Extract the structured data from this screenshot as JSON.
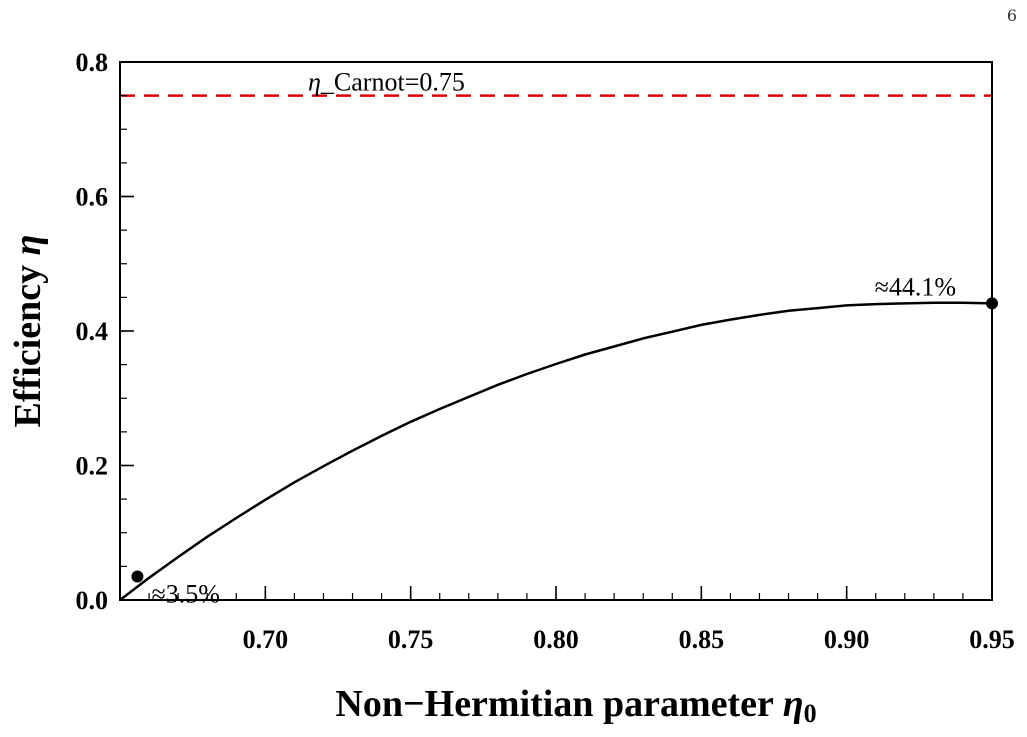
{
  "page": {
    "number": "6"
  },
  "chart_data": {
    "type": "line",
    "title": "",
    "xlabel": "Non−Hermitian parameter η₀",
    "xlabel_main": "Non−Hermitian parameter ",
    "xlabel_symbol": "η",
    "xlabel_subscript": "0",
    "ylabel": "Efficiency η",
    "ylabel_main": "Efficiency ",
    "ylabel_symbol": "η",
    "xlim": [
      0.65,
      0.95
    ],
    "ylim": [
      0.0,
      0.8
    ],
    "x_ticks": [
      0.7,
      0.75,
      0.8,
      0.85,
      0.9,
      0.95
    ],
    "x_tick_labels": [
      "0.70",
      "0.75",
      "0.80",
      "0.85",
      "0.90",
      "0.95"
    ],
    "x_minor_step": 0.01,
    "y_ticks": [
      0.0,
      0.2,
      0.4,
      0.6,
      0.8
    ],
    "y_tick_labels": [
      "0.0",
      "0.2",
      "0.4",
      "0.6",
      "0.8"
    ],
    "y_minor_step": 0.05,
    "grid": false,
    "series": [
      {
        "color": "#000000",
        "x": [
          0.65,
          0.66,
          0.67,
          0.68,
          0.69,
          0.7,
          0.71,
          0.72,
          0.73,
          0.74,
          0.75,
          0.76,
          0.77,
          0.78,
          0.79,
          0.8,
          0.81,
          0.82,
          0.83,
          0.84,
          0.85,
          0.86,
          0.87,
          0.88,
          0.89,
          0.9,
          0.91,
          0.92,
          0.93,
          0.94,
          0.95
        ],
        "y": [
          0.0,
          0.033,
          0.064,
          0.094,
          0.122,
          0.149,
          0.175,
          0.199,
          0.222,
          0.244,
          0.265,
          0.284,
          0.302,
          0.32,
          0.336,
          0.351,
          0.365,
          0.377,
          0.389,
          0.399,
          0.409,
          0.417,
          0.424,
          0.43,
          0.434,
          0.438,
          0.44,
          0.441,
          0.442,
          0.442,
          0.441
        ]
      }
    ],
    "reference_line": {
      "y": 0.75,
      "label": "η_Carnot=0.75",
      "label_symbol": "η",
      "label_rest": "_Carnot=0.75",
      "color": "#dd0000",
      "style": "dashed"
    },
    "markers": [
      {
        "x": 0.656,
        "y": 0.035,
        "label": "≈3.5%"
      },
      {
        "x": 0.95,
        "y": 0.441,
        "label": "≈44.1%"
      }
    ]
  }
}
